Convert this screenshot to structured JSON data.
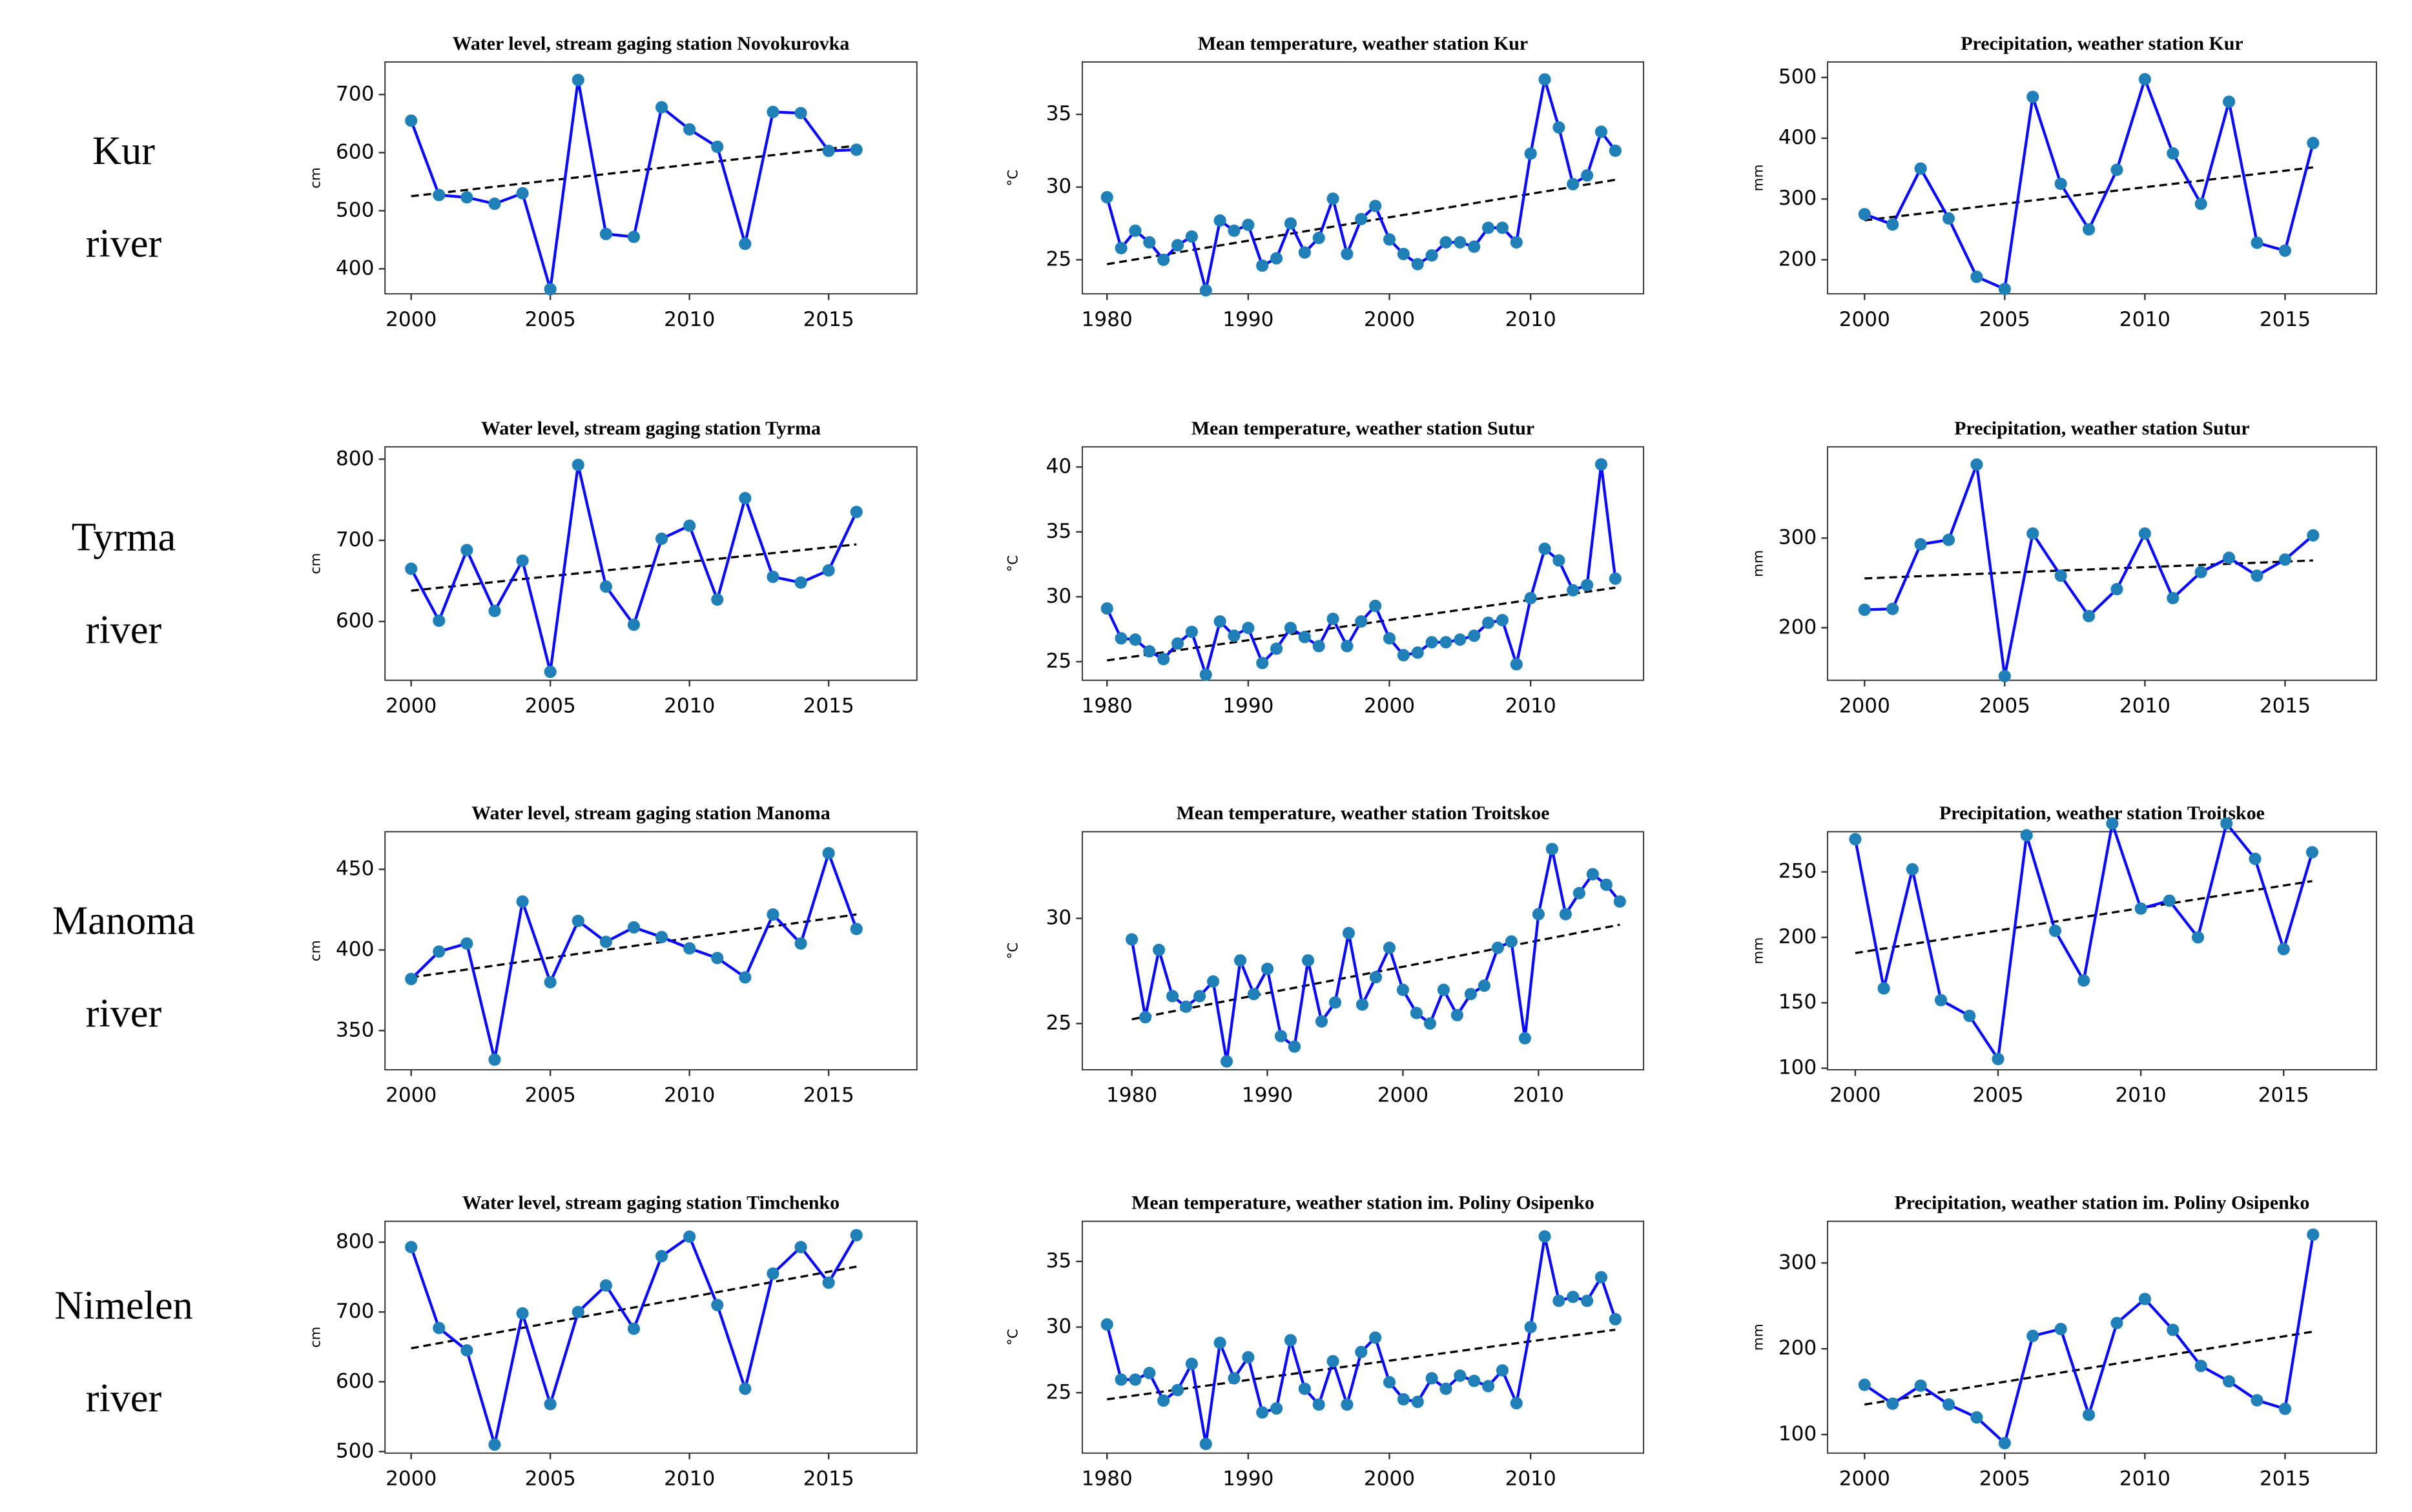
{
  "row_labels": [
    [
      "Kur",
      "river"
    ],
    [
      "Tyrma",
      "river"
    ],
    [
      "Manoma",
      "river"
    ],
    [
      "Nimelen",
      "river"
    ]
  ],
  "chart_data": [
    {
      "type": "line",
      "title": "Water level, stream gaging station Novokurovka",
      "ylabel": "cm",
      "x": [
        2000,
        2001,
        2002,
        2003,
        2004,
        2005,
        2006,
        2007,
        2008,
        2009,
        2010,
        2011,
        2012,
        2013,
        2014,
        2015,
        2016
      ],
      "values": [
        655,
        527,
        523,
        512,
        530,
        365,
        725,
        460,
        455,
        678,
        640,
        610,
        443,
        670,
        668,
        603,
        605
      ],
      "color": "#0a0aff",
      "marker_color": "#1f80b8",
      "trend": {
        "x": [
          2000,
          2016
        ],
        "values": [
          525,
          612
        ],
        "color": "#000000"
      },
      "xlim": [
        1999.06,
        2018.17
      ],
      "ylim": [
        357,
        756
      ],
      "xticks": [
        2000,
        2005,
        2010,
        2015
      ],
      "yticks": [
        400,
        500,
        600,
        700
      ]
    },
    {
      "type": "line",
      "title": "Mean temperature, weather station Kur",
      "ylabel": "°C",
      "x": [
        1980,
        1981,
        1982,
        1983,
        1984,
        1985,
        1986,
        1987,
        1988,
        1989,
        1990,
        1991,
        1992,
        1993,
        1994,
        1995,
        1996,
        1997,
        1998,
        1999,
        2000,
        2001,
        2002,
        2003,
        2004,
        2005,
        2006,
        2007,
        2008,
        2009,
        2010,
        2011,
        2012,
        2013,
        2014,
        2015,
        2016
      ],
      "values": [
        29.3,
        25.8,
        27.0,
        26.2,
        25.0,
        26.0,
        26.6,
        22.9,
        27.7,
        27.0,
        27.4,
        24.6,
        25.1,
        27.5,
        25.5,
        26.5,
        29.2,
        25.4,
        27.8,
        28.7,
        26.4,
        25.4,
        24.7,
        25.3,
        26.2,
        26.2,
        25.9,
        27.2,
        27.2,
        26.2,
        32.3,
        37.4,
        34.1,
        30.2,
        30.8,
        33.8,
        32.5
      ],
      "color": "#0a0aff",
      "marker_color": "#1f80b8",
      "trend": {
        "x": [
          1980,
          2016
        ],
        "values": [
          24.7,
          30.5
        ],
        "color": "#000000"
      },
      "xlim": [
        1978.25,
        2018.0
      ],
      "ylim": [
        22.66,
        38.6
      ],
      "xticks": [
        1980,
        1990,
        2000,
        2010
      ],
      "yticks": [
        25,
        30,
        35
      ]
    },
    {
      "type": "line",
      "title": "Precipitation, weather station Kur",
      "ylabel": "mm",
      "x": [
        2000,
        2001,
        2002,
        2003,
        2004,
        2005,
        2006,
        2007,
        2008,
        2009,
        2010,
        2011,
        2012,
        2013,
        2014,
        2015,
        2016
      ],
      "values": [
        275,
        258,
        350,
        268,
        172,
        152,
        468,
        325,
        250,
        348,
        497,
        375,
        292,
        460,
        228,
        215,
        392
      ],
      "color": "#0a0aff",
      "marker_color": "#1f80b8",
      "trend": {
        "x": [
          2000,
          2016
        ],
        "values": [
          265,
          352
        ],
        "color": "#000000"
      },
      "xlim": [
        1998.68,
        2018.26
      ],
      "ylim": [
        144,
        525.4
      ],
      "xticks": [
        2000,
        2005,
        2010,
        2015
      ],
      "yticks": [
        200,
        300,
        400,
        500
      ]
    },
    {
      "type": "line",
      "title": "Water level, stream gaging station Tyrma",
      "ylabel": "cm",
      "x": [
        2000,
        2001,
        2002,
        2003,
        2004,
        2005,
        2006,
        2007,
        2008,
        2009,
        2010,
        2011,
        2012,
        2013,
        2014,
        2015,
        2016
      ],
      "values": [
        665,
        601,
        688,
        613,
        675,
        538,
        793,
        643,
        596,
        702,
        718,
        627,
        752,
        655,
        648,
        663,
        735
      ],
      "color": "#0a0aff",
      "marker_color": "#1f80b8",
      "trend": {
        "x": [
          2000,
          2016
        ],
        "values": [
          638,
          695
        ],
        "color": "#000000"
      },
      "xlim": [
        1999.06,
        2018.17
      ],
      "ylim": [
        527.6,
        815.2
      ],
      "xticks": [
        2000,
        2005,
        2010,
        2015
      ],
      "yticks": [
        600,
        700,
        800
      ]
    },
    {
      "type": "line",
      "title": "Mean temperature, weather station Sutur",
      "ylabel": "°C",
      "x": [
        1980,
        1981,
        1982,
        1983,
        1984,
        1985,
        1986,
        1987,
        1988,
        1989,
        1990,
        1991,
        1992,
        1993,
        1994,
        1995,
        1996,
        1997,
        1998,
        1999,
        2000,
        2001,
        2002,
        2003,
        2004,
        2005,
        2006,
        2007,
        2008,
        2009,
        2010,
        2011,
        2012,
        2013,
        2014,
        2015,
        2016
      ],
      "values": [
        29.1,
        26.8,
        26.7,
        25.8,
        25.2,
        26.4,
        27.3,
        24.0,
        28.1,
        27.0,
        27.6,
        24.9,
        26.0,
        27.6,
        26.9,
        26.2,
        28.3,
        26.2,
        28.1,
        29.3,
        26.8,
        25.5,
        25.7,
        26.5,
        26.5,
        26.7,
        27.0,
        28.0,
        28.2,
        24.8,
        29.9,
        33.7,
        32.8,
        30.5,
        30.9,
        40.2,
        31.4
      ],
      "color": "#0a0aff",
      "marker_color": "#1f80b8",
      "trend": {
        "x": [
          1980,
          2016
        ],
        "values": [
          25.1,
          30.7
        ],
        "color": "#000000"
      },
      "xlim": [
        1978.25,
        2018.0
      ],
      "ylim": [
        23.57,
        41.55
      ],
      "xticks": [
        1980,
        1990,
        2000,
        2010
      ],
      "yticks": [
        25,
        30,
        35,
        40
      ]
    },
    {
      "type": "line",
      "title": "Precipitation, weather station Sutur",
      "ylabel": "mm",
      "x": [
        2000,
        2001,
        2002,
        2003,
        2004,
        2005,
        2006,
        2007,
        2008,
        2009,
        2010,
        2011,
        2012,
        2013,
        2014,
        2015,
        2016
      ],
      "values": [
        220,
        221,
        293,
        298,
        382,
        146,
        305,
        258,
        213,
        243,
        305,
        233,
        262,
        278,
        258,
        276,
        303
      ],
      "color": "#0a0aff",
      "marker_color": "#1f80b8",
      "trend": {
        "x": [
          2000,
          2016
        ],
        "values": [
          255,
          275
        ],
        "color": "#000000"
      },
      "xlim": [
        1998.68,
        2018.26
      ],
      "ylim": [
        141.4,
        401.7
      ],
      "xticks": [
        2000,
        2005,
        2010,
        2015
      ],
      "yticks": [
        200,
        300
      ]
    },
    {
      "type": "line",
      "title": "Water level, stream gaging station Manoma",
      "ylabel": "cm",
      "x": [
        2000,
        2001,
        2002,
        2003,
        2004,
        2005,
        2006,
        2007,
        2008,
        2009,
        2010,
        2011,
        2012,
        2013,
        2014,
        2015,
        2016
      ],
      "values": [
        382,
        399,
        404,
        332,
        430,
        380,
        418,
        405,
        414,
        408,
        401,
        395,
        383,
        422,
        404,
        460,
        413
      ],
      "color": "#0a0aff",
      "marker_color": "#1f80b8",
      "trend": {
        "x": [
          2000,
          2016
        ],
        "values": [
          383,
          422
        ],
        "color": "#000000"
      },
      "xlim": [
        1999.06,
        2018.17
      ],
      "ylim": [
        325.7,
        473.3
      ],
      "xticks": [
        2000,
        2005,
        2010,
        2015
      ],
      "yticks": [
        350,
        400,
        450
      ]
    },
    {
      "type": "line",
      "title": "Mean temperature, weather station Troitskoe",
      "ylabel": "°C",
      "x": [
        1980,
        1981,
        1982,
        1983,
        1984,
        1985,
        1986,
        1987,
        1988,
        1989,
        1990,
        1991,
        1992,
        1993,
        1994,
        1995,
        1996,
        1997,
        1998,
        1999,
        2000,
        2001,
        2002,
        2003,
        2004,
        2005,
        2006,
        2007,
        2008,
        2009,
        2010,
        2011,
        2012,
        2013,
        2014,
        2015,
        2016
      ],
      "values": [
        29.0,
        25.3,
        28.5,
        26.3,
        25.8,
        26.3,
        27.0,
        23.2,
        28.0,
        26.4,
        27.6,
        24.4,
        23.9,
        28.0,
        25.1,
        26.0,
        29.3,
        25.9,
        27.2,
        28.6,
        26.6,
        25.5,
        25.0,
        26.6,
        25.4,
        26.4,
        26.8,
        28.6,
        28.9,
        24.3,
        30.2,
        33.3,
        30.2,
        31.2,
        32.1,
        31.6,
        30.8
      ],
      "color": "#0a0aff",
      "marker_color": "#1f80b8",
      "trend": {
        "x": [
          1980,
          2016
        ],
        "values": [
          25.2,
          29.7
        ],
        "color": "#000000"
      },
      "xlim": [
        1976.35,
        2017.75
      ],
      "ylim": [
        22.8,
        34.12
      ],
      "xticks": [
        1980,
        1990,
        2000,
        2010
      ],
      "yticks": [
        25,
        30
      ]
    },
    {
      "type": "line",
      "title": "Precipitation, weather station Troitskoe",
      "ylabel": "mm",
      "x": [
        2000,
        2001,
        2002,
        2003,
        2004,
        2005,
        2006,
        2007,
        2008,
        2009,
        2010,
        2011,
        2012,
        2013,
        2014,
        2015,
        2016
      ],
      "values": [
        275,
        161,
        252,
        152,
        140,
        107,
        278,
        205,
        167,
        287,
        222,
        228,
        200,
        287,
        260,
        191,
        265
      ],
      "color": "#0a0aff",
      "marker_color": "#1f80b8",
      "trend": {
        "x": [
          2000,
          2016
        ],
        "values": [
          188,
          243
        ],
        "color": "#000000"
      },
      "xlim": [
        1999.03,
        2018.25
      ],
      "ylim": [
        98.8,
        280.7
      ],
      "xticks": [
        2000,
        2005,
        2010,
        2015
      ],
      "yticks": [
        100,
        150,
        200,
        250
      ]
    },
    {
      "type": "line",
      "title": "Water level, stream gaging station Timchenko",
      "ylabel": "cm",
      "x": [
        2000,
        2001,
        2002,
        2003,
        2004,
        2005,
        2006,
        2007,
        2008,
        2009,
        2010,
        2011,
        2012,
        2013,
        2014,
        2015,
        2016
      ],
      "values": [
        793,
        677,
        645,
        510,
        698,
        568,
        700,
        738,
        676,
        780,
        808,
        710,
        590,
        755,
        793,
        742,
        810
      ],
      "color": "#0a0aff",
      "marker_color": "#1f80b8",
      "trend": {
        "x": [
          2000,
          2016
        ],
        "values": [
          648,
          765
        ],
        "color": "#000000"
      },
      "xlim": [
        1999.06,
        2018.17
      ],
      "ylim": [
        497.8,
        830.0
      ],
      "xticks": [
        2000,
        2005,
        2010,
        2015
      ],
      "yticks": [
        500,
        600,
        700,
        800
      ]
    },
    {
      "type": "line",
      "title": "Mean temperature, weather station im. Poliny Osipenko",
      "ylabel": "°C",
      "x": [
        1980,
        1981,
        1982,
        1983,
        1984,
        1985,
        1986,
        1987,
        1988,
        1989,
        1990,
        1991,
        1992,
        1993,
        1994,
        1995,
        1996,
        1997,
        1998,
        1999,
        2000,
        2001,
        2002,
        2003,
        2004,
        2005,
        2006,
        2007,
        2008,
        2009,
        2010,
        2011,
        2012,
        2013,
        2014,
        2015,
        2016
      ],
      "values": [
        30.2,
        26.0,
        26.0,
        26.5,
        24.4,
        25.2,
        27.2,
        21.1,
        28.8,
        26.1,
        27.7,
        23.5,
        23.8,
        29.0,
        25.3,
        24.1,
        27.4,
        24.1,
        28.1,
        29.2,
        25.8,
        24.5,
        24.3,
        26.1,
        25.3,
        26.3,
        25.9,
        25.5,
        26.7,
        24.2,
        30.0,
        36.9,
        32.0,
        32.3,
        32.0,
        33.8,
        30.6
      ],
      "color": "#0a0aff",
      "marker_color": "#1f80b8",
      "trend": {
        "x": [
          1980,
          2016
        ],
        "values": [
          24.5,
          29.8
        ],
        "color": "#000000"
      },
      "xlim": [
        1978.25,
        2018.0
      ],
      "ylim": [
        20.4,
        38.06
      ],
      "xticks": [
        1980,
        1990,
        2000,
        2010
      ],
      "yticks": [
        25,
        30,
        35
      ]
    },
    {
      "type": "line",
      "title": "Precipitation, weather station im. Poliny Osipenko",
      "ylabel": "mm",
      "x": [
        2000,
        2001,
        2002,
        2003,
        2004,
        2005,
        2006,
        2007,
        2008,
        2009,
        2010,
        2011,
        2012,
        2013,
        2014,
        2015,
        2016
      ],
      "values": [
        158,
        136,
        157,
        135,
        120,
        90,
        215,
        223,
        123,
        230,
        258,
        222,
        180,
        162,
        140,
        130,
        333
      ],
      "color": "#0a0aff",
      "marker_color": "#1f80b8",
      "trend": {
        "x": [
          2000,
          2016
        ],
        "values": [
          135,
          220
        ],
        "color": "#000000"
      },
      "xlim": [
        1998.68,
        2018.26
      ],
      "ylim": [
        78.4,
        348.6
      ],
      "xticks": [
        2000,
        2005,
        2010,
        2015
      ],
      "yticks": [
        100,
        200,
        300
      ]
    }
  ]
}
